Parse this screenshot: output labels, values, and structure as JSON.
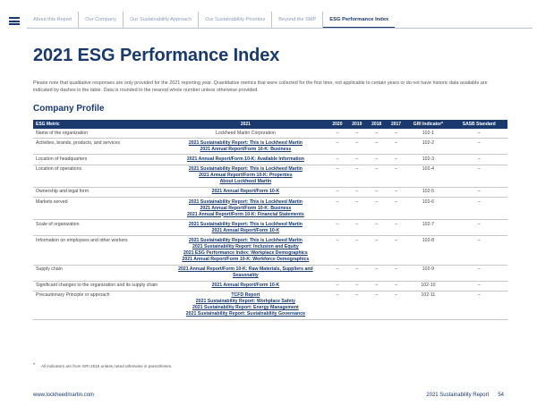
{
  "nav": {
    "tabs": [
      {
        "label": "About this Report",
        "active": false
      },
      {
        "label": "Our Company",
        "active": false
      },
      {
        "label": "Our Sustainability Approach",
        "active": false
      },
      {
        "label": "Our Sustainability Priorities",
        "active": false
      },
      {
        "label": "Beyond the SMP",
        "active": false
      },
      {
        "label": "ESG Performance Index",
        "active": true
      }
    ]
  },
  "page_title": "2021 ESG Performance Index",
  "intro": "Please note that qualitative responses are only provided for the 2021 reporting year. Quantitative metrics that were collected for the first time, not applicable to certain years or do not have historic data available are indicated by dashes in the table. Data is rounded to the nearest whole number unless otherwise provided.",
  "section_title": "Company Profile",
  "table": {
    "headers": {
      "metric": "ESG Metric",
      "y2021": "2021",
      "y2020": "2020",
      "y2019": "2019",
      "y2018": "2018",
      "y2017": "2017",
      "gri": "GRI Indicator*",
      "sasb": "SASB Standard"
    },
    "rows": [
      {
        "metric": "Name of the organization",
        "plain": "Lockheed Martin Corporation",
        "links": [],
        "y2020": "–",
        "y2019": "–",
        "y2018": "–",
        "y2017": "–",
        "gri": "102-1",
        "sasb": "–"
      },
      {
        "metric": "Activities, brands, products, and services",
        "plain": "",
        "links": [
          "2021 Sustainability Report: This is Lockheed Martin",
          "2021 Annual Report/Form 10-K: Business"
        ],
        "y2020": "–",
        "y2019": "–",
        "y2018": "–",
        "y2017": "–",
        "gri": "102-2",
        "sasb": "–"
      },
      {
        "metric": "Location of headquarters",
        "plain": "",
        "links": [
          "2021 Annual Report/Form 10-K: Available Information"
        ],
        "y2020": "–",
        "y2019": "–",
        "y2018": "–",
        "y2017": "–",
        "gri": "102-3",
        "sasb": "–"
      },
      {
        "metric": "Location of operations",
        "plain": "",
        "links": [
          "2021 Sustainability Report: This is Lockheed Martin",
          "2021 Annual Report/Form 10-K: Properties",
          "About Lockheed Martin"
        ],
        "y2020": "–",
        "y2019": "–",
        "y2018": "–",
        "y2017": "–",
        "gri": "102-4",
        "sasb": "–"
      },
      {
        "metric": "Ownership and legal form",
        "plain": "",
        "links": [
          "2021 Annual Report/Form 10-K"
        ],
        "y2020": "–",
        "y2019": "–",
        "y2018": "–",
        "y2017": "–",
        "gri": "102-5",
        "sasb": "–"
      },
      {
        "metric": "Markets served",
        "plain": "",
        "links": [
          "2021 Sustainability Report: This is Lockheed Martin",
          "2021 Annual Report/Form 10-K: Business",
          "2021 Annual Report/Form 10-K: Financial Statements"
        ],
        "y2020": "–",
        "y2019": "–",
        "y2018": "–",
        "y2017": "–",
        "gri": "102-6",
        "sasb": "–"
      },
      {
        "metric": "Scale of organization",
        "plain": "",
        "links": [
          "2021 Sustainability Report: This is Lockheed Martin",
          "2021 Annual Report/Form 10-K"
        ],
        "y2020": "–",
        "y2019": "–",
        "y2018": "–",
        "y2017": "–",
        "gri": "102-7",
        "sasb": "–"
      },
      {
        "metric": "Information on employees and other workers",
        "plain": "",
        "links": [
          "2021 Sustainability Report: This is Lockheed Martin",
          "2021 Sustainability Report: Inclusion and Equity",
          "2021 ESG Performance Index: Workplace Demographics",
          "2021 Annual Report/Form 10-K: Workforce Demographics"
        ],
        "y2020": "–",
        "y2019": "–",
        "y2018": "–",
        "y2017": "–",
        "gri": "102-8",
        "sasb": "–"
      },
      {
        "metric": "Supply chain",
        "plain": "",
        "links": [
          "2021 Annual Report/Form 10-K: Raw Materials, Suppliers and",
          "Seasonality"
        ],
        "y2020": "–",
        "y2019": "–",
        "y2018": "–",
        "y2017": "–",
        "gri": "102-9",
        "sasb": "–"
      },
      {
        "metric": "Significant changes to the organization and its supply chain",
        "plain": "",
        "links": [
          "2021 Annual Report/Form 10-K"
        ],
        "y2020": "–",
        "y2019": "–",
        "y2018": "–",
        "y2017": "–",
        "gri": "102-10",
        "sasb": "–"
      },
      {
        "metric": "Precautionary Principle or approach",
        "plain": "",
        "links": [
          "TCFD Report",
          "2021 Sustainability Report: Workplace Safety",
          "2021 Sustainability Report: Energy Management",
          "2021 Sustainability Report: Sustainability Governance"
        ],
        "y2020": "–",
        "y2019": "–",
        "y2018": "–",
        "y2017": "–",
        "gri": "102-11",
        "sasb": "–"
      }
    ]
  },
  "footnote": {
    "marker": "*",
    "text": "All indicators are from GRI 2016 unless noted otherwise in parentheses."
  },
  "footer": {
    "site": "www.lockheedmartin.com",
    "report": "2021 Sustainability Report",
    "page": "54"
  }
}
